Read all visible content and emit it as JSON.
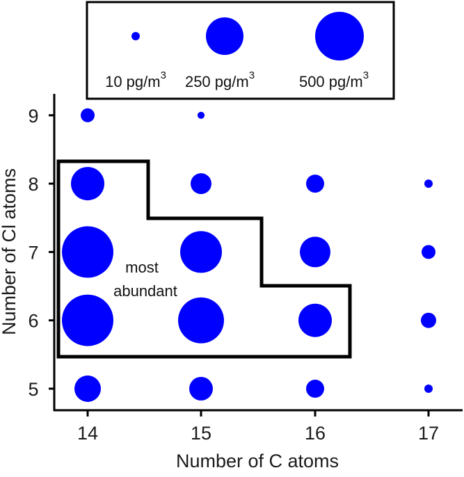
{
  "chart_data": {
    "type": "scatter",
    "subtype": "bubble",
    "title": "",
    "xlabel": "Number of C atoms",
    "ylabel": "Number of Cl atoms",
    "x_ticks": [
      14,
      15,
      16,
      17
    ],
    "y_ticks": [
      5,
      6,
      7,
      8,
      9
    ],
    "xlim": [
      13.7,
      17.3
    ],
    "ylim": [
      4.7,
      9.3
    ],
    "grid": false,
    "marker_color": "#0000ff",
    "size_unit": "pg/m3",
    "legend": {
      "position": "top",
      "entries": [
        {
          "label": "10 pg/m",
          "sup": "3",
          "value": 10
        },
        {
          "label": "250 pg/m",
          "sup": "3",
          "value": 250
        },
        {
          "label": "500 pg/m",
          "sup": "3",
          "value": 500
        }
      ]
    },
    "points": [
      {
        "c": 14,
        "cl": 9,
        "value": 39
      },
      {
        "c": 15,
        "cl": 9,
        "value": 10
      },
      {
        "c": 14,
        "cl": 8,
        "value": 225
      },
      {
        "c": 15,
        "cl": 8,
        "value": 88
      },
      {
        "c": 16,
        "cl": 8,
        "value": 66
      },
      {
        "c": 17,
        "cl": 8,
        "value": 14
      },
      {
        "c": 14,
        "cl": 7,
        "value": 535
      },
      {
        "c": 15,
        "cl": 7,
        "value": 352
      },
      {
        "c": 16,
        "cl": 7,
        "value": 189
      },
      {
        "c": 17,
        "cl": 7,
        "value": 39
      },
      {
        "c": 14,
        "cl": 6,
        "value": 535
      },
      {
        "c": 15,
        "cl": 6,
        "value": 425
      },
      {
        "c": 16,
        "cl": 6,
        "value": 225
      },
      {
        "c": 17,
        "cl": 6,
        "value": 47
      },
      {
        "c": 14,
        "cl": 5,
        "value": 141
      },
      {
        "c": 15,
        "cl": 5,
        "value": 113
      },
      {
        "c": 16,
        "cl": 5,
        "value": 66
      },
      {
        "c": 17,
        "cl": 5,
        "value": 14
      }
    ],
    "annotations": [
      {
        "text_lines": [
          "most",
          "abundant"
        ],
        "region": "C14-C16 with Cl6-Cl8 (stepped outline)"
      }
    ],
    "highlight_region": [
      {
        "c": 14,
        "cl": [
          6,
          7,
          8
        ]
      },
      {
        "c": 15,
        "cl": [
          6,
          7
        ]
      },
      {
        "c": 16,
        "cl": [
          6
        ]
      }
    ]
  }
}
